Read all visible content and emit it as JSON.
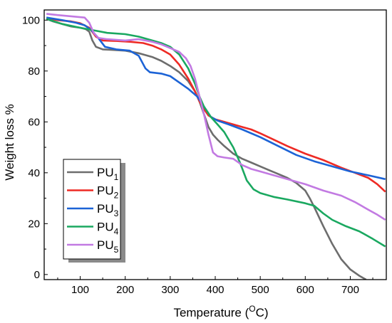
{
  "chart_data": {
    "type": "line",
    "xlabel_main": "Temperature (",
    "xlabel_sup": "O",
    "xlabel_end": "C)",
    "ylabel": "Weight loss %",
    "xlim": [
      20,
      780
    ],
    "ylim": [
      -2,
      104
    ],
    "xticks": [
      "100",
      "200",
      "300",
      "400",
      "500",
      "600",
      "700"
    ],
    "yticks": [
      "0",
      "20",
      "40",
      "60",
      "80",
      "100"
    ],
    "grid": false,
    "legend_position": "bottom-left",
    "series": [
      {
        "base": "PU",
        "sub": "1",
        "color": "#6d6d6d",
        "points": [
          [
            25,
            100.5
          ],
          [
            40,
            99.5
          ],
          [
            60,
            98.5
          ],
          [
            80,
            97.5
          ],
          [
            100,
            97
          ],
          [
            112,
            96.5
          ],
          [
            120,
            95.5
          ],
          [
            127,
            92
          ],
          [
            135,
            89.5
          ],
          [
            150,
            88.5
          ],
          [
            170,
            88.3
          ],
          [
            200,
            88
          ],
          [
            230,
            87
          ],
          [
            260,
            85.5
          ],
          [
            280,
            84
          ],
          [
            300,
            82
          ],
          [
            320,
            79.5
          ],
          [
            340,
            76
          ],
          [
            355,
            72
          ],
          [
            365,
            68
          ],
          [
            375,
            63
          ],
          [
            385,
            58
          ],
          [
            395,
            55
          ],
          [
            405,
            53
          ],
          [
            420,
            50.5
          ],
          [
            440,
            47.5
          ],
          [
            460,
            45.5
          ],
          [
            480,
            44
          ],
          [
            500,
            42.5
          ],
          [
            520,
            41
          ],
          [
            540,
            39.5
          ],
          [
            560,
            38
          ],
          [
            580,
            36
          ],
          [
            600,
            33
          ],
          [
            610,
            30
          ],
          [
            620,
            26.5
          ],
          [
            640,
            19
          ],
          [
            660,
            12
          ],
          [
            680,
            6
          ],
          [
            700,
            2
          ],
          [
            720,
            -0.5
          ],
          [
            735,
            -2
          ]
        ]
      },
      {
        "base": "PU",
        "sub": "2",
        "color": "#ee2a24",
        "points": [
          [
            25,
            100.8
          ],
          [
            50,
            100
          ],
          [
            80,
            99.5
          ],
          [
            100,
            98.8
          ],
          [
            120,
            97
          ],
          [
            135,
            93.5
          ],
          [
            150,
            92
          ],
          [
            180,
            91.8
          ],
          [
            210,
            91.5
          ],
          [
            240,
            91
          ],
          [
            260,
            90
          ],
          [
            280,
            88.5
          ],
          [
            300,
            86.5
          ],
          [
            320,
            82.5
          ],
          [
            340,
            77
          ],
          [
            355,
            72
          ],
          [
            365,
            68
          ],
          [
            375,
            65
          ],
          [
            385,
            62.5
          ],
          [
            400,
            61
          ],
          [
            420,
            60
          ],
          [
            440,
            59
          ],
          [
            460,
            58
          ],
          [
            480,
            57
          ],
          [
            500,
            55.5
          ],
          [
            530,
            53
          ],
          [
            560,
            50.5
          ],
          [
            600,
            47.5
          ],
          [
            640,
            45
          ],
          [
            680,
            42
          ],
          [
            710,
            40
          ],
          [
            740,
            38
          ],
          [
            760,
            35.5
          ],
          [
            778,
            32.5
          ]
        ]
      },
      {
        "base": "PU",
        "sub": "3",
        "color": "#1c63d6",
        "points": [
          [
            25,
            101
          ],
          [
            60,
            100
          ],
          [
            90,
            99
          ],
          [
            110,
            98
          ],
          [
            125,
            96
          ],
          [
            140,
            93
          ],
          [
            155,
            89.5
          ],
          [
            180,
            88.5
          ],
          [
            210,
            88
          ],
          [
            230,
            86
          ],
          [
            245,
            81
          ],
          [
            255,
            79.5
          ],
          [
            280,
            79
          ],
          [
            300,
            78
          ],
          [
            320,
            75.5
          ],
          [
            340,
            73
          ],
          [
            360,
            70
          ],
          [
            375,
            66
          ],
          [
            390,
            62
          ],
          [
            405,
            60.5
          ],
          [
            430,
            59
          ],
          [
            460,
            57
          ],
          [
            500,
            54
          ],
          [
            540,
            50.5
          ],
          [
            580,
            47
          ],
          [
            620,
            44.5
          ],
          [
            660,
            42.5
          ],
          [
            700,
            40.5
          ],
          [
            740,
            39
          ],
          [
            778,
            37.5
          ]
        ]
      },
      {
        "base": "PU",
        "sub": "4",
        "color": "#1aa860",
        "points": [
          [
            25,
            100.5
          ],
          [
            60,
            98.5
          ],
          [
            100,
            97
          ],
          [
            130,
            96
          ],
          [
            160,
            95
          ],
          [
            200,
            94.5
          ],
          [
            230,
            93.5
          ],
          [
            260,
            92
          ],
          [
            280,
            91
          ],
          [
            300,
            89.5
          ],
          [
            320,
            86.5
          ],
          [
            340,
            81
          ],
          [
            355,
            75
          ],
          [
            365,
            70
          ],
          [
            375,
            66
          ],
          [
            390,
            62
          ],
          [
            405,
            59
          ],
          [
            420,
            56
          ],
          [
            440,
            50
          ],
          [
            455,
            44
          ],
          [
            470,
            37
          ],
          [
            485,
            33.5
          ],
          [
            500,
            32
          ],
          [
            530,
            30.5
          ],
          [
            560,
            29.5
          ],
          [
            600,
            28
          ],
          [
            620,
            27
          ],
          [
            640,
            24
          ],
          [
            660,
            21.5
          ],
          [
            690,
            19
          ],
          [
            720,
            17
          ],
          [
            750,
            14
          ],
          [
            778,
            11
          ]
        ]
      },
      {
        "base": "PU",
        "sub": "5",
        "color": "#c27ae2",
        "points": [
          [
            25,
            102.5
          ],
          [
            50,
            102
          ],
          [
            80,
            101.5
          ],
          [
            110,
            101
          ],
          [
            120,
            99
          ],
          [
            130,
            95
          ],
          [
            140,
            93
          ],
          [
            160,
            92.5
          ],
          [
            200,
            92
          ],
          [
            230,
            92.5
          ],
          [
            260,
            91.5
          ],
          [
            280,
            90.5
          ],
          [
            300,
            89
          ],
          [
            320,
            87.5
          ],
          [
            335,
            85
          ],
          [
            345,
            82
          ],
          [
            355,
            77
          ],
          [
            365,
            70
          ],
          [
            375,
            63
          ],
          [
            385,
            55
          ],
          [
            395,
            48
          ],
          [
            405,
            46.5
          ],
          [
            420,
            46
          ],
          [
            440,
            45.5
          ],
          [
            460,
            43
          ],
          [
            480,
            41.5
          ],
          [
            500,
            40.5
          ],
          [
            530,
            39
          ],
          [
            560,
            37.5
          ],
          [
            600,
            35.5
          ],
          [
            640,
            33
          ],
          [
            680,
            31
          ],
          [
            710,
            28.5
          ],
          [
            740,
            25.5
          ],
          [
            760,
            23.5
          ],
          [
            778,
            21.5
          ]
        ]
      }
    ]
  }
}
